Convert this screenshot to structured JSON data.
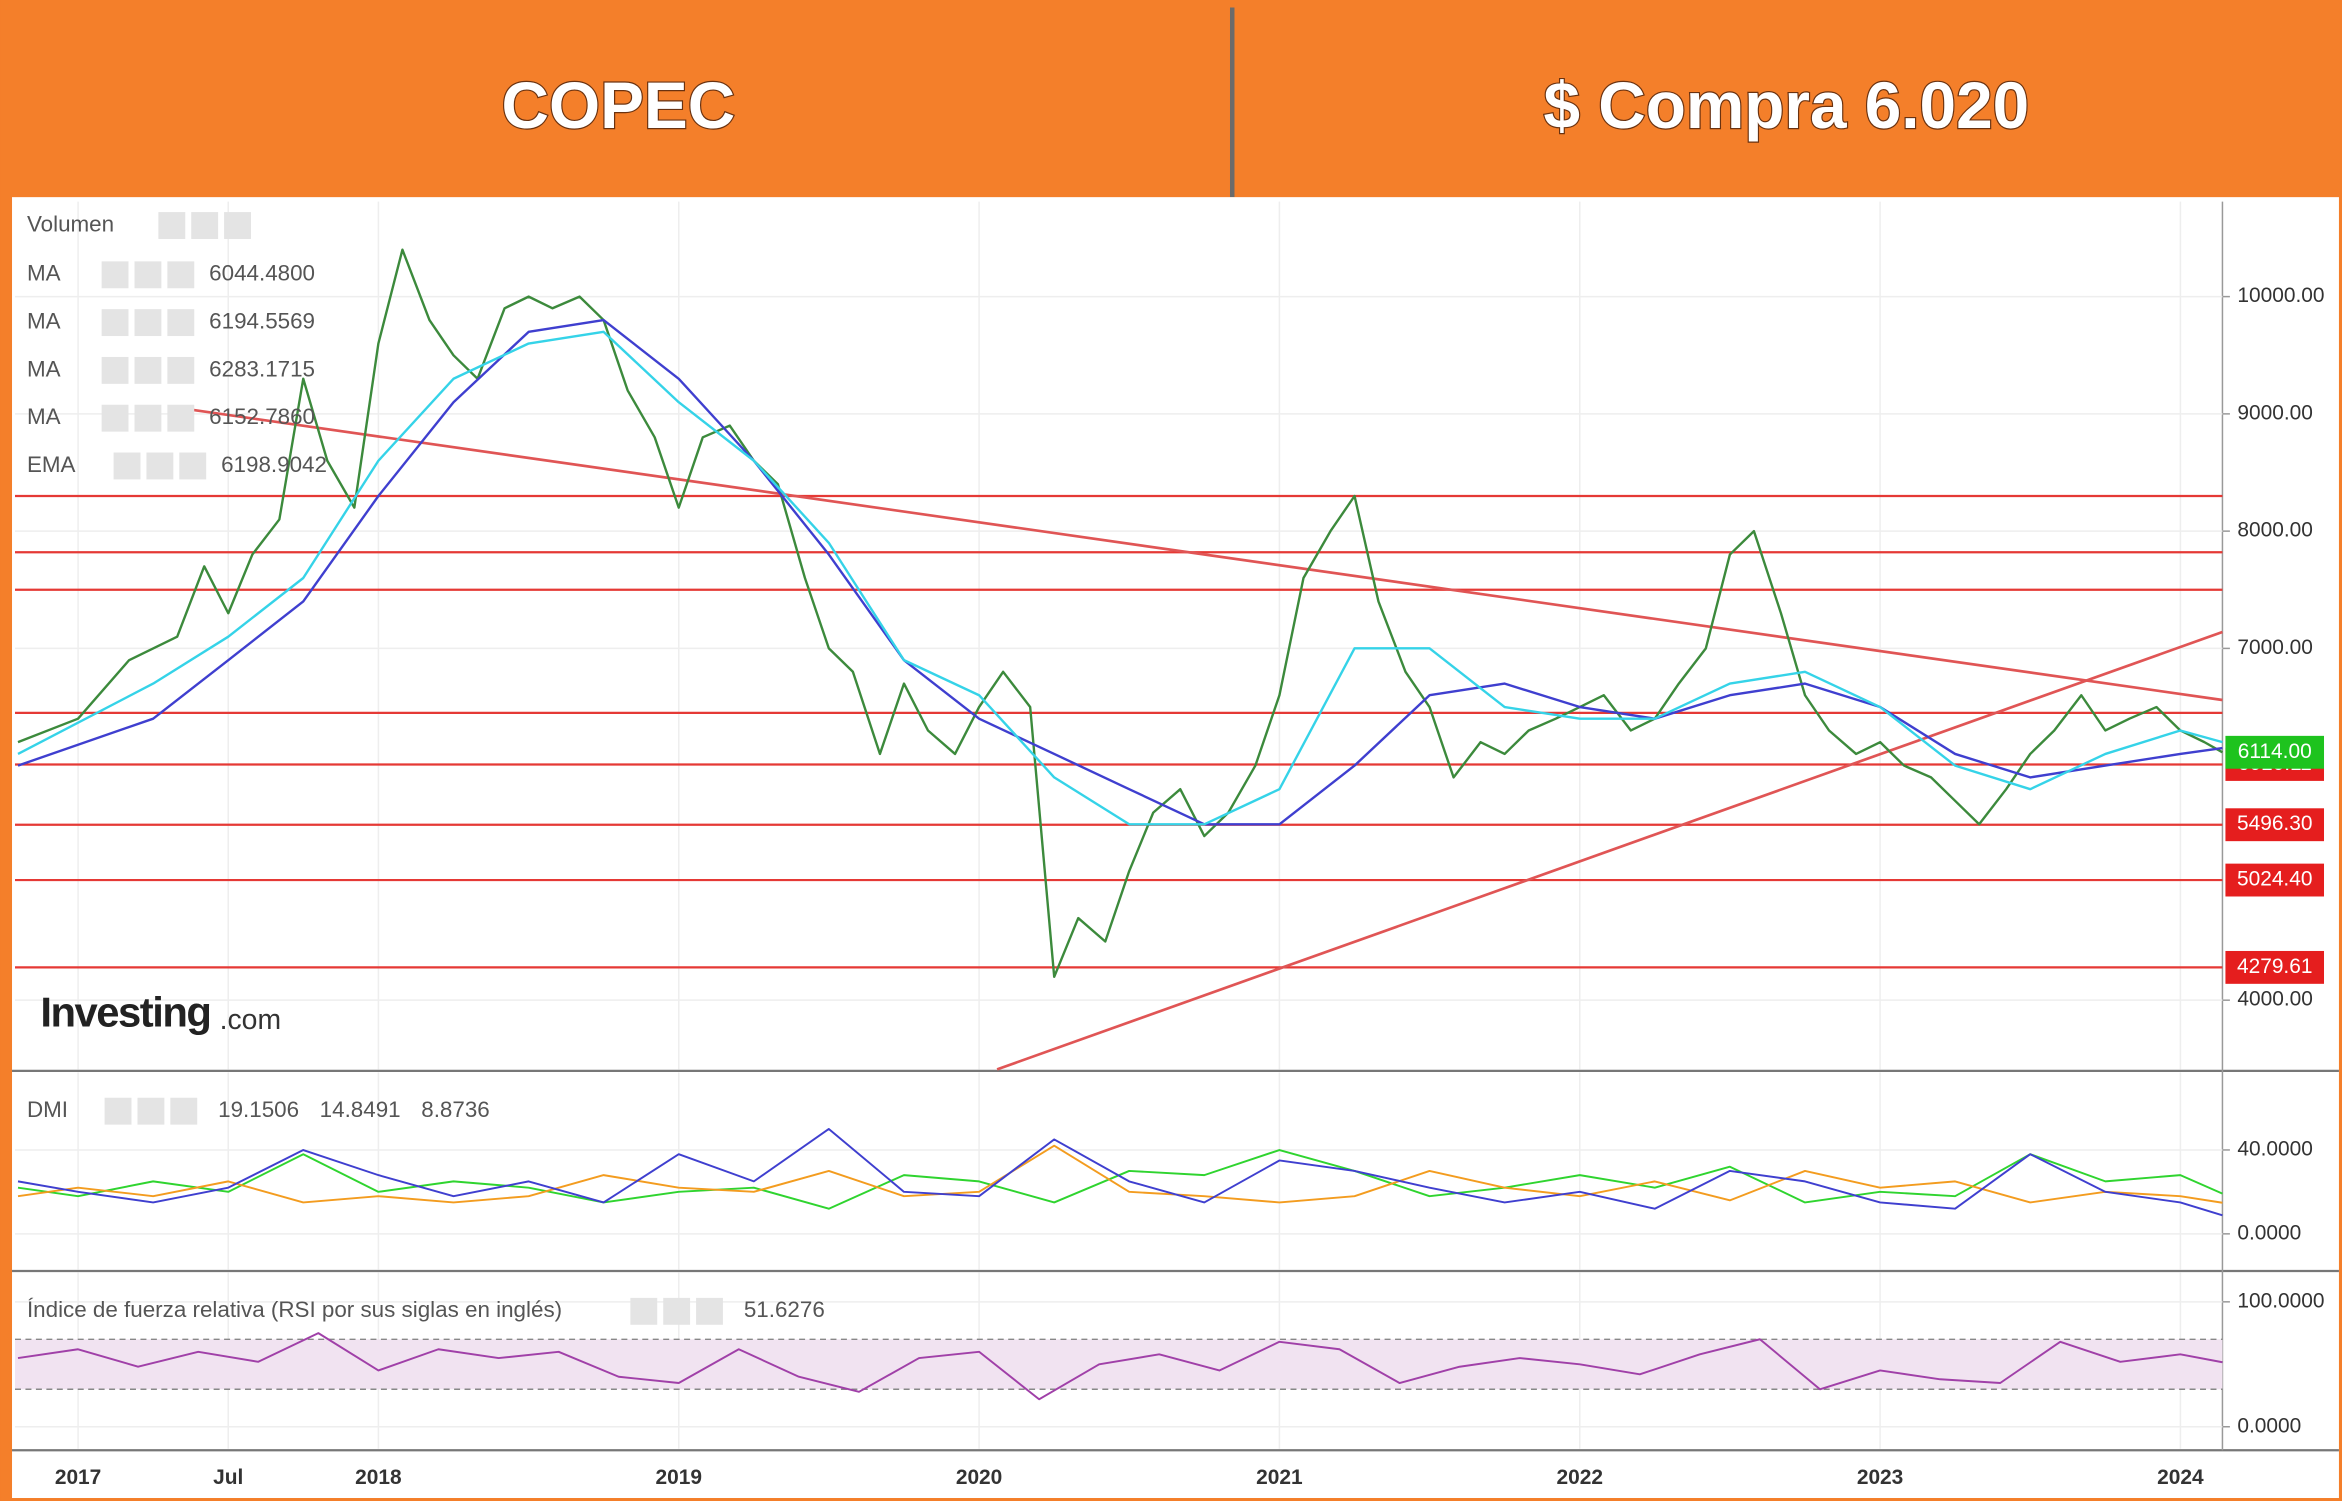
{
  "header": {
    "left": "COPEC",
    "right": "$ Compra 6.020"
  },
  "chart_data": [
    {
      "type": "line",
      "xlim": [
        2016.79,
        2024.14
      ],
      "ylim": [
        3410,
        10810
      ],
      "yticks": [
        {
          "value": 4000,
          "label": "4000.00"
        },
        {
          "value": 7000,
          "label": "7000.00"
        },
        {
          "value": 8000,
          "label": "8000.00"
        },
        {
          "value": 9000,
          "label": "9000.00"
        },
        {
          "value": 10000,
          "label": "10000.00"
        }
      ],
      "grid": true,
      "legend": [
        {
          "label": "Volumen"
        },
        {
          "label": "MA",
          "value": "6044.4800",
          "color": "#222222"
        },
        {
          "label": "MA",
          "value": "6194.5569",
          "color": "#e53935"
        },
        {
          "label": "MA",
          "value": "6283.1715",
          "color": "#d63bd6"
        },
        {
          "label": "MA",
          "value": "6152.7860",
          "color": "#3f3fcf"
        },
        {
          "label": "EMA",
          "value": "6198.9042",
          "color": "#20c8e0"
        }
      ],
      "series": [
        {
          "color": "#3c8a3c",
          "x": [
            2016.8,
            2017.0,
            2017.17,
            2017.33,
            2017.42,
            2017.5,
            2017.58,
            2017.67,
            2017.75,
            2017.83,
            2017.92,
            2018.0,
            2018.08,
            2018.17,
            2018.25,
            2018.33,
            2018.42,
            2018.5,
            2018.58,
            2018.67,
            2018.75,
            2018.83,
            2018.92,
            2019.0,
            2019.08,
            2019.17,
            2019.25,
            2019.33,
            2019.42,
            2019.5,
            2019.58,
            2019.67,
            2019.75,
            2019.83,
            2019.92,
            2020.0,
            2020.08,
            2020.17,
            2020.25,
            2020.33,
            2020.42,
            2020.5,
            2020.58,
            2020.67,
            2020.75,
            2020.83,
            2020.92,
            2021.0,
            2021.08,
            2021.17,
            2021.25,
            2021.33,
            2021.42,
            2021.5,
            2021.58,
            2021.67,
            2021.75,
            2021.83,
            2021.92,
            2022.0,
            2022.08,
            2022.17,
            2022.25,
            2022.33,
            2022.42,
            2022.5,
            2022.58,
            2022.67,
            2022.75,
            2022.83,
            2022.92,
            2023.0,
            2023.08,
            2023.17,
            2023.25,
            2023.33,
            2023.42,
            2023.5,
            2023.58,
            2023.67,
            2023.75,
            2023.83,
            2023.92,
            2024.0,
            2024.08,
            2024.14
          ],
          "values": [
            6200,
            6400,
            6900,
            7100,
            7700,
            7300,
            7800,
            8100,
            9300,
            8600,
            8200,
            9600,
            10400,
            9800,
            9500,
            9300,
            9900,
            10000,
            9900,
            10000,
            9800,
            9200,
            8800,
            8200,
            8800,
            8900,
            8600,
            8400,
            7600,
            7000,
            6800,
            6100,
            6700,
            6300,
            6100,
            6500,
            6800,
            6500,
            4200,
            4700,
            4500,
            5100,
            5600,
            5800,
            5400,
            5600,
            6000,
            6600,
            7600,
            8000,
            8300,
            7400,
            6800,
            6500,
            5900,
            6200,
            6100,
            6300,
            6400,
            6500,
            6600,
            6300,
            6400,
            6700,
            7000,
            7800,
            8000,
            7300,
            6600,
            6300,
            6100,
            6200,
            6000,
            5900,
            5700,
            5500,
            5800,
            6100,
            6300,
            6600,
            6300,
            6400,
            6500,
            6300,
            6200,
            6114
          ]
        },
        {
          "color": "#3f3fcf",
          "x": [
            2016.8,
            2017.25,
            2017.5,
            2017.75,
            2018.0,
            2018.25,
            2018.5,
            2018.75,
            2019.0,
            2019.25,
            2019.5,
            2019.75,
            2020.0,
            2020.25,
            2020.5,
            2020.75,
            2021.0,
            2021.25,
            2021.5,
            2021.75,
            2022.0,
            2022.25,
            2022.5,
            2022.75,
            2023.0,
            2023.25,
            2023.5,
            2023.75,
            2024.0,
            2024.14
          ],
          "values": [
            6000,
            6400,
            6900,
            7400,
            8300,
            9100,
            9700,
            9800,
            9300,
            8600,
            7800,
            6900,
            6400,
            6100,
            5800,
            5500,
            5500,
            6000,
            6600,
            6700,
            6500,
            6400,
            6600,
            6700,
            6500,
            6100,
            5900,
            6000,
            6100,
            6150
          ]
        },
        {
          "color": "#35d3e8",
          "x": [
            2016.8,
            2017.25,
            2017.5,
            2017.75,
            2018.0,
            2018.25,
            2018.5,
            2018.75,
            2019.0,
            2019.25,
            2019.5,
            2019.75,
            2020.0,
            2020.25,
            2020.5,
            2020.75,
            2021.0,
            2021.25,
            2021.5,
            2021.75,
            2022.0,
            2022.25,
            2022.5,
            2022.75,
            2023.0,
            2023.25,
            2023.5,
            2023.75,
            2024.0,
            2024.14
          ],
          "values": [
            6100,
            6700,
            7100,
            7600,
            8600,
            9300,
            9600,
            9700,
            9100,
            8600,
            7900,
            6900,
            6600,
            5900,
            5500,
            5500,
            5800,
            7000,
            7000,
            6500,
            6400,
            6400,
            6700,
            6800,
            6500,
            6000,
            5800,
            6100,
            6300,
            6200
          ]
        }
      ],
      "levels": [
        8300,
        7820,
        7500,
        6450
      ],
      "labeled_levels": [
        6010.11,
        {
          "value": 5496.3,
          "label": "5496.30"
        },
        {
          "value": 5024.4,
          "label": "5024.40"
        },
        4279.61
      ],
      "last_price": {
        "value": 6114,
        "label": "6114.00",
        "color": "#1ec31e"
      },
      "trendlines": [
        {
          "x": [
            2017.31,
            2024.14
          ],
          "values": [
            9060,
            6560
          ]
        },
        {
          "x": [
            2020.06,
            2024.14
          ],
          "values": [
            3410,
            7140
          ]
        }
      ],
      "watermark": [
        "Investing",
        ".com"
      ]
    },
    {
      "type": "line",
      "title": "DMI",
      "xlim": [
        2016.79,
        2024.14
      ],
      "ylim": [
        -17,
        77
      ],
      "yticks": [
        {
          "value": 0,
          "label": "0.0000"
        },
        {
          "value": 40,
          "label": "40.0000"
        }
      ],
      "series": [
        {
          "color": "#2fd42f",
          "x": [
            2016.8,
            2017.0,
            2017.25,
            2017.5,
            2017.75,
            2018.0,
            2018.25,
            2018.5,
            2018.75,
            2019.0,
            2019.25,
            2019.5,
            2019.75,
            2020.0,
            2020.25,
            2020.5,
            2020.75,
            2021.0,
            2021.25,
            2021.5,
            2021.75,
            2022.0,
            2022.25,
            2022.5,
            2022.75,
            2023.0,
            2023.25,
            2023.5,
            2023.75,
            2024.0,
            2024.14
          ],
          "values": [
            22,
            18,
            25,
            20,
            38,
            20,
            25,
            22,
            15,
            20,
            22,
            12,
            28,
            25,
            15,
            30,
            28,
            40,
            30,
            18,
            22,
            28,
            22,
            32,
            15,
            20,
            18,
            38,
            25,
            28,
            19.1506
          ]
        },
        {
          "color": "#f39c1f",
          "x": [
            2016.8,
            2017.0,
            2017.25,
            2017.5,
            2017.75,
            2018.0,
            2018.25,
            2018.5,
            2018.75,
            2019.0,
            2019.25,
            2019.5,
            2019.75,
            2020.0,
            2020.25,
            2020.5,
            2020.75,
            2021.0,
            2021.25,
            2021.5,
            2021.75,
            2022.0,
            2022.25,
            2022.5,
            2022.75,
            2023.0,
            2023.25,
            2023.5,
            2023.75,
            2024.0,
            2024.14
          ],
          "values": [
            18,
            22,
            18,
            25,
            15,
            18,
            15,
            18,
            28,
            22,
            20,
            30,
            18,
            20,
            42,
            20,
            18,
            15,
            18,
            30,
            22,
            18,
            25,
            16,
            30,
            22,
            25,
            15,
            20,
            18,
            14.8491
          ]
        },
        {
          "color": "#3f3fcf",
          "x": [
            2016.8,
            2017.0,
            2017.25,
            2017.5,
            2017.75,
            2018.0,
            2018.25,
            2018.5,
            2018.75,
            2019.0,
            2019.25,
            2019.5,
            2019.75,
            2020.0,
            2020.25,
            2020.5,
            2020.75,
            2021.0,
            2021.25,
            2021.5,
            2021.75,
            2022.0,
            2022.25,
            2022.5,
            2022.75,
            2023.0,
            2023.25,
            2023.5,
            2023.75,
            2024.0,
            2024.14
          ],
          "values": [
            25,
            20,
            15,
            22,
            40,
            28,
            18,
            25,
            15,
            38,
            25,
            50,
            20,
            18,
            45,
            25,
            15,
            35,
            30,
            22,
            15,
            20,
            12,
            30,
            25,
            15,
            12,
            38,
            20,
            15,
            8.8736
          ]
        }
      ]
    },
    {
      "type": "line",
      "title": "Índice de fuerza relativa (RSI por sus siglas en inglés)",
      "xlim": [
        2016.79,
        2024.14
      ],
      "ylim": [
        -17.6,
        123.5
      ],
      "yticks": [
        {
          "value": 0,
          "label": "0.0000"
        },
        {
          "value": 100,
          "label": "100.0000"
        }
      ],
      "band": [
        30,
        70
      ],
      "xticks": [
        2017,
        {
          "value": 2017.5,
          "label": "Jul"
        },
        2018,
        2019,
        2020,
        2021,
        2022,
        2023,
        2024
      ],
      "series": [
        {
          "color": "#a040a8",
          "x": [
            2016.8,
            2017.0,
            2017.2,
            2017.4,
            2017.6,
            2017.8,
            2018.0,
            2018.2,
            2018.4,
            2018.6,
            2018.8,
            2019.0,
            2019.2,
            2019.4,
            2019.6,
            2019.8,
            2020.0,
            2020.2,
            2020.4,
            2020.6,
            2020.8,
            2021.0,
            2021.2,
            2021.4,
            2021.6,
            2021.8,
            2022.0,
            2022.2,
            2022.4,
            2022.6,
            2022.8,
            2023.0,
            2023.2,
            2023.4,
            2023.6,
            2023.8,
            2024.0,
            2024.14
          ],
          "values": [
            55,
            62,
            48,
            60,
            52,
            75,
            45,
            62,
            55,
            60,
            40,
            35,
            62,
            40,
            28,
            55,
            60,
            22,
            50,
            58,
            45,
            68,
            62,
            35,
            48,
            55,
            50,
            42,
            58,
            70,
            30,
            45,
            38,
            35,
            68,
            52,
            58,
            51.6276
          ]
        }
      ]
    }
  ]
}
